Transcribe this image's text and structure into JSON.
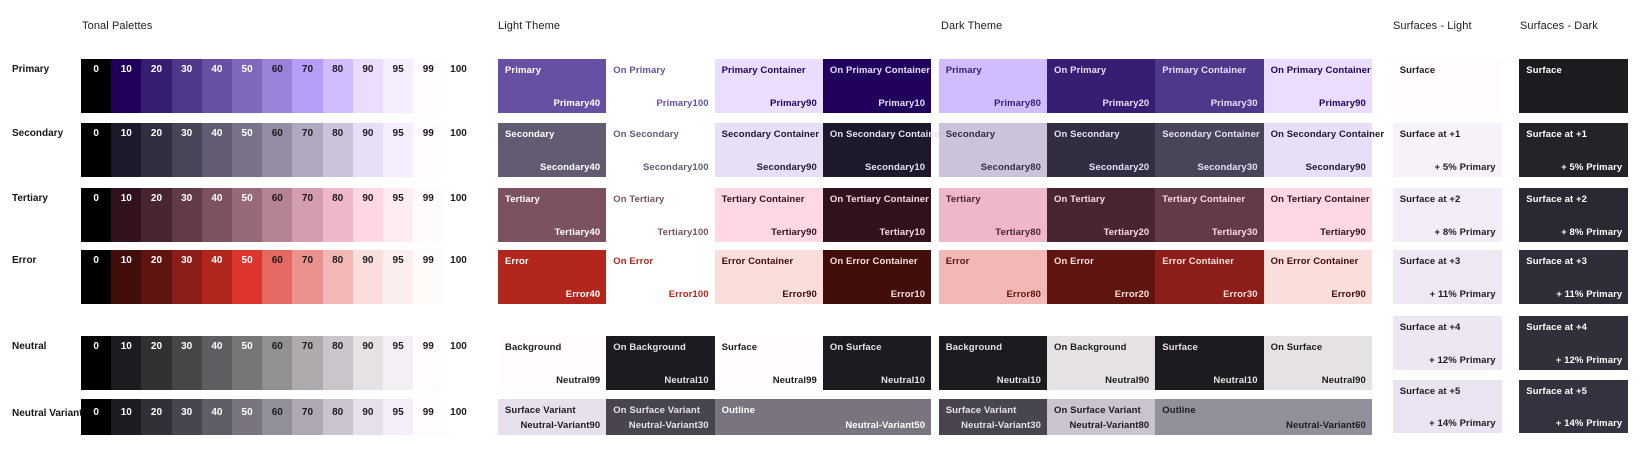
{
  "headers": {
    "tonal": "Tonal Palettes",
    "light": "Light Theme",
    "dark": "Dark Theme",
    "surfaces_light": "Surfaces - Light",
    "surfaces_dark": "Surfaces - Dark"
  },
  "tonal": {
    "tone_labels": [
      "0",
      "10",
      "20",
      "30",
      "40",
      "50",
      "60",
      "70",
      "80",
      "90",
      "95",
      "99",
      "100"
    ],
    "rows": [
      {
        "label": "Primary",
        "colors": [
          "#000000",
          "#21005D",
          "#381E72",
          "#4F378B",
          "#6750A4",
          "#7F67BE",
          "#9A82DB",
          "#B69DF8",
          "#D0BCFF",
          "#EADDFF",
          "#F6EDFF",
          "#FFFBFE",
          "#FFFFFF"
        ]
      },
      {
        "label": "Secondary",
        "colors": [
          "#000000",
          "#1D192B",
          "#332D41",
          "#4A4458",
          "#625B71",
          "#7A7289",
          "#958DA5",
          "#B0A7C0",
          "#CCC2DC",
          "#E8DEF8",
          "#F6EDFF",
          "#FFFBFE",
          "#FFFFFF"
        ]
      },
      {
        "label": "Tertiary",
        "colors": [
          "#000000",
          "#31111D",
          "#492532",
          "#633B48",
          "#7D5260",
          "#986977",
          "#B58392",
          "#D29DAC",
          "#EFB8C8",
          "#FFD8E4",
          "#FFECF1",
          "#FFFBFA",
          "#FFFFFF"
        ]
      },
      {
        "label": "Error",
        "colors": [
          "#000000",
          "#410E0B",
          "#601410",
          "#8C1D18",
          "#B3261E",
          "#DC362E",
          "#E46962",
          "#EC928E",
          "#F2B8B5",
          "#F9DEDC",
          "#FCEEEE",
          "#FFFBF9",
          "#FFFFFF"
        ]
      },
      {
        "label": "Neutral",
        "colors": [
          "#000000",
          "#1C1B1F",
          "#313033",
          "#484649",
          "#605D62",
          "#787579",
          "#939094",
          "#AEAAAE",
          "#C9C5CA",
          "#E6E1E5",
          "#F4EFF4",
          "#FFFBFE",
          "#FFFFFF"
        ]
      },
      {
        "label": "Neutral Variant",
        "colors": [
          "#000000",
          "#1D1A22",
          "#322F37",
          "#49454F",
          "#605D66",
          "#79747E",
          "#938F99",
          "#AEA9B4",
          "#CAC4D0",
          "#E7E0EC",
          "#F5EEFA",
          "#FFFBFE",
          "#FFFFFF"
        ]
      }
    ]
  },
  "light_theme": {
    "rows": [
      [
        {
          "label": "Primary",
          "tone": "Primary40",
          "bg": "#6750A4",
          "fg": "#FFFFFF"
        },
        {
          "label": "On Primary",
          "tone": "Primary100",
          "bg": "#FFFFFF",
          "fg": "#6750A4"
        },
        {
          "label": "Primary Container",
          "tone": "Primary90",
          "bg": "#EADDFF",
          "fg": "#21005D"
        },
        {
          "label": "On Primary Container",
          "tone": "Primary10",
          "bg": "#21005D",
          "fg": "#EADDFF"
        }
      ],
      [
        {
          "label": "Secondary",
          "tone": "Secondary40",
          "bg": "#625B71",
          "fg": "#FFFFFF"
        },
        {
          "label": "On Secondary",
          "tone": "Secondary100",
          "bg": "#FFFFFF",
          "fg": "#625B71"
        },
        {
          "label": "Secondary Container",
          "tone": "Secondary90",
          "bg": "#E8DEF8",
          "fg": "#1D192B"
        },
        {
          "label": "On Secondary Container",
          "tone": "Secondary10",
          "bg": "#1D192B",
          "fg": "#E8DEF8"
        }
      ],
      [
        {
          "label": "Tertiary",
          "tone": "Tertiary40",
          "bg": "#7D5260",
          "fg": "#FFFFFF"
        },
        {
          "label": "On Tertiary",
          "tone": "Tertiary100",
          "bg": "#FFFFFF",
          "fg": "#7D5260"
        },
        {
          "label": "Tertiary Container",
          "tone": "Tertiary90",
          "bg": "#FFD8E4",
          "fg": "#31111D"
        },
        {
          "label": "On Tertiary Container",
          "tone": "Tertiary10",
          "bg": "#31111D",
          "fg": "#FFD8E4"
        }
      ],
      [
        {
          "label": "Error",
          "tone": "Error40",
          "bg": "#B3261E",
          "fg": "#FFFFFF"
        },
        {
          "label": "On Error",
          "tone": "Error100",
          "bg": "#FFFFFF",
          "fg": "#B3261E"
        },
        {
          "label": "Error Container",
          "tone": "Error90",
          "bg": "#F9DEDC",
          "fg": "#410E0B"
        },
        {
          "label": "On Error Container",
          "tone": "Error10",
          "bg": "#410E0B",
          "fg": "#F9DEDC"
        }
      ],
      [
        {
          "label": "Background",
          "tone": "Neutral99",
          "bg": "#FFFBFE",
          "fg": "#1C1B1F"
        },
        {
          "label": "On Background",
          "tone": "Neutral10",
          "bg": "#1C1B1F",
          "fg": "#E6E1E5"
        },
        {
          "label": "Surface",
          "tone": "Neutral99",
          "bg": "#FFFBFE",
          "fg": "#1C1B1F"
        },
        {
          "label": "On Surface",
          "tone": "Neutral10",
          "bg": "#1C1B1F",
          "fg": "#E6E1E5"
        }
      ],
      [
        {
          "label": "Surface Variant",
          "tone": "Neutral-Variant90",
          "bg": "#E7E0EC",
          "fg": "#1D1A22"
        },
        {
          "label": "On Surface Variant",
          "tone": "Neutral-Variant30",
          "bg": "#49454F",
          "fg": "#E7E0EC"
        },
        {
          "label": "Outline",
          "tone": "Neutral-Variant50",
          "bg": "#79747E",
          "fg": "#FFFFFF",
          "span": 2
        }
      ]
    ]
  },
  "dark_theme": {
    "rows": [
      [
        {
          "label": "Primary",
          "tone": "Primary80",
          "bg": "#D0BCFF",
          "fg": "#381E72"
        },
        {
          "label": "On Primary",
          "tone": "Primary20",
          "bg": "#381E72",
          "fg": "#EADDFF"
        },
        {
          "label": "Primary Container",
          "tone": "Primary30",
          "bg": "#4F378B",
          "fg": "#EADDFF"
        },
        {
          "label": "On Primary Container",
          "tone": "Primary90",
          "bg": "#EADDFF",
          "fg": "#21005D"
        }
      ],
      [
        {
          "label": "Secondary",
          "tone": "Secondary80",
          "bg": "#CCC2DC",
          "fg": "#332D41"
        },
        {
          "label": "On Secondary",
          "tone": "Secondary20",
          "bg": "#332D41",
          "fg": "#E8DEF8"
        },
        {
          "label": "Secondary Container",
          "tone": "Secondary30",
          "bg": "#4A4458",
          "fg": "#E8DEF8"
        },
        {
          "label": "On Secondary Container",
          "tone": "Secondary90",
          "bg": "#E8DEF8",
          "fg": "#1D192B"
        }
      ],
      [
        {
          "label": "Tertiary",
          "tone": "Tertiary80",
          "bg": "#EFB8C8",
          "fg": "#492532"
        },
        {
          "label": "On Tertiary",
          "tone": "Tertiary20",
          "bg": "#492532",
          "fg": "#FFD8E4"
        },
        {
          "label": "Tertiary Container",
          "tone": "Tertiary30",
          "bg": "#633B48",
          "fg": "#FFD8E4"
        },
        {
          "label": "On Tertiary Container",
          "tone": "Tertiary90",
          "bg": "#FFD8E4",
          "fg": "#31111D"
        }
      ],
      [
        {
          "label": "Error",
          "tone": "Error80",
          "bg": "#F2B8B5",
          "fg": "#601410"
        },
        {
          "label": "On Error",
          "tone": "Error20",
          "bg": "#601410",
          "fg": "#F9DEDC"
        },
        {
          "label": "Error Container",
          "tone": "Error30",
          "bg": "#8C1D18",
          "fg": "#F9DEDC"
        },
        {
          "label": "On Error Container",
          "tone": "Error90",
          "bg": "#F9DEDC",
          "fg": "#410E0B"
        }
      ],
      [
        {
          "label": "Background",
          "tone": "Neutral10",
          "bg": "#1C1B1F",
          "fg": "#E6E1E5"
        },
        {
          "label": "On Background",
          "tone": "Neutral90",
          "bg": "#E6E1E5",
          "fg": "#1C1B1F"
        },
        {
          "label": "Surface",
          "tone": "Neutral10",
          "bg": "#1C1B1F",
          "fg": "#E6E1E5"
        },
        {
          "label": "On Surface",
          "tone": "Neutral90",
          "bg": "#E6E1E5",
          "fg": "#1C1B1F"
        }
      ],
      [
        {
          "label": "Surface Variant",
          "tone": "Neutral-Variant30",
          "bg": "#49454F",
          "fg": "#E7E0EC"
        },
        {
          "label": "On Surface Variant",
          "tone": "Neutral-Variant80",
          "bg": "#CAC4D0",
          "fg": "#1D1A22"
        },
        {
          "label": "Outline",
          "tone": "Neutral-Variant60",
          "bg": "#938F99",
          "fg": "#1D1A22",
          "span": 2
        }
      ]
    ]
  },
  "surfaces_light": {
    "rows": [
      {
        "label": "Surface",
        "pct": "",
        "bg": "#FFFBFE",
        "fg": "#1C1B1F"
      },
      {
        "label": "Surface at +1",
        "pct": "+ 5% Primary",
        "bg": "#F7F2FA",
        "fg": "#1C1B1F"
      },
      {
        "label": "Surface at +2",
        "pct": "+ 8% Primary",
        "bg": "#F3EDF7",
        "fg": "#1C1B1F"
      },
      {
        "label": "Surface at +3",
        "pct": "+ 11% Primary",
        "bg": "#EFE8F4",
        "fg": "#1C1B1F"
      },
      {
        "label": "Surface at +4",
        "pct": "+ 12% Primary",
        "bg": "#EDE6F3",
        "fg": "#1C1B1F"
      },
      {
        "label": "Surface at +5",
        "pct": "+ 14% Primary",
        "bg": "#EAE3F1",
        "fg": "#1C1B1F"
      }
    ]
  },
  "surfaces_dark": {
    "rows": [
      {
        "label": "Surface",
        "pct": "",
        "bg": "#1C1B1F",
        "fg": "#FFFFFF"
      },
      {
        "label": "Surface at +1",
        "pct": "+ 5% Primary",
        "bg": "#25232A",
        "fg": "#FFFFFF"
      },
      {
        "label": "Surface at +2",
        "pct": "+ 8% Primary",
        "bg": "#2A2831",
        "fg": "#FFFFFF"
      },
      {
        "label": "Surface at +3",
        "pct": "+ 11% Primary",
        "bg": "#302D38",
        "fg": "#FFFFFF"
      },
      {
        "label": "Surface at +4",
        "pct": "+ 12% Primary",
        "bg": "#322E3A",
        "fg": "#FFFFFF"
      },
      {
        "label": "Surface at +5",
        "pct": "+ 14% Primary",
        "bg": "#35313E",
        "fg": "#FFFFFF"
      }
    ]
  }
}
